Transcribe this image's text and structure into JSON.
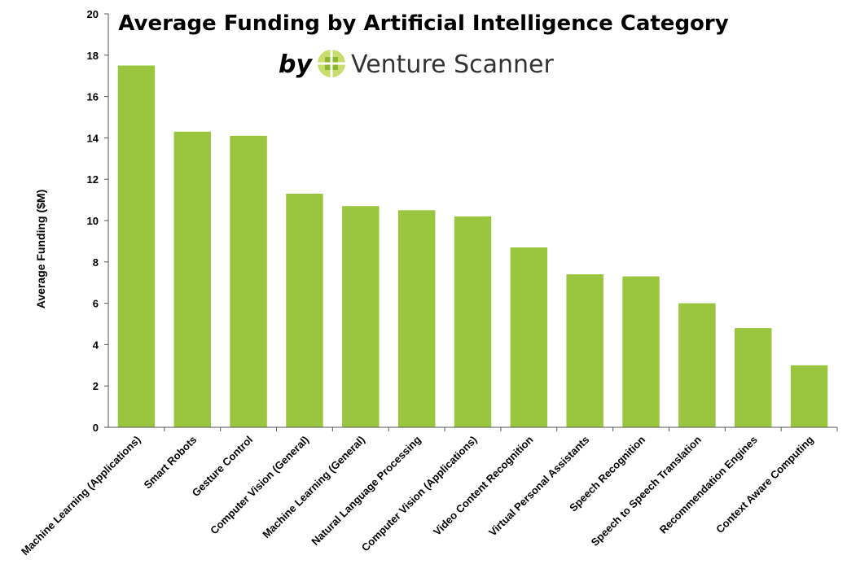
{
  "colors": {
    "bar": "#9ac63f",
    "axis": "#555555",
    "logo_light": "#c9dc6e",
    "logo_dark": "#8db62f"
  },
  "logo": {
    "by_text": "by",
    "brand_name": "Venture Scanner",
    "icon": "grid-logo-icon"
  },
  "chart_data": {
    "type": "bar",
    "title": "Average Funding by Artificial Intelligence Category",
    "xlabel": "",
    "ylabel": "Average Funding ($M)",
    "ylim": [
      0,
      20
    ],
    "yticks": [
      0,
      2,
      4,
      6,
      8,
      10,
      12,
      14,
      16,
      18,
      20
    ],
    "grid": false,
    "legend": "none",
    "categories": [
      "Machine Learning (Applications)",
      "Smart Robots",
      "Gesture Control",
      "Computer Vision (General)",
      "Machine Learning (General)",
      "Natural Language Processing",
      "Computer Vision (Applications)",
      "Video Content Recognition",
      "Virtual Personal Assistants",
      "Speech Recognition",
      "Speech to Speech Translation",
      "Recommendation Engines",
      "Context Aware Computing"
    ],
    "values": [
      17.5,
      14.3,
      14.1,
      11.3,
      10.7,
      10.5,
      10.2,
      8.7,
      7.4,
      7.3,
      6.0,
      4.8,
      3.0
    ]
  }
}
